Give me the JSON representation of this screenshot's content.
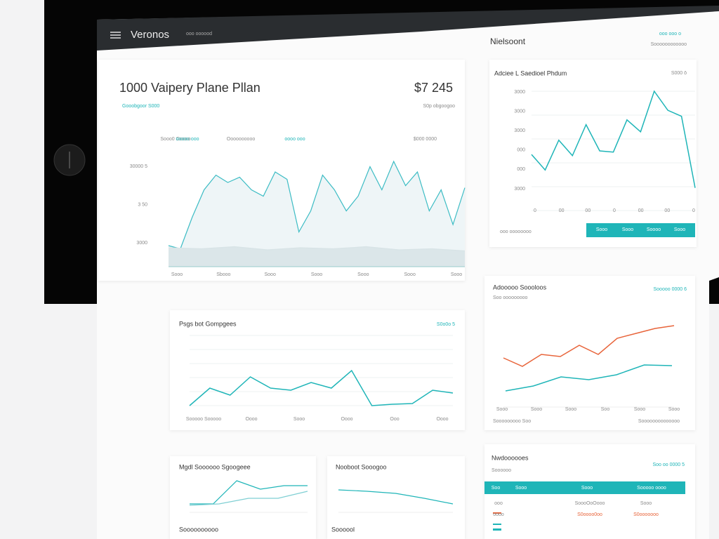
{
  "header": {
    "brand": "Veronos",
    "tagline": "ooo oooood",
    "section": "Nielsoont",
    "link": "ooo ooo o",
    "sublink": "Soooooooooooo"
  },
  "main": {
    "title": "1000 Vaipery Plane Pllan",
    "subtitle": "Gooobgoor S000",
    "price": "$7 245",
    "price_note": "S0p obgoogoo",
    "legend": [
      "Sooo0 Goooo",
      "ooooo ooo",
      "Oooooooooo",
      "oooo ooo",
      "$000 0000"
    ],
    "ylabels": [
      "30000 5",
      "3 50",
      "3000"
    ],
    "xlabels": [
      "Sooo",
      "Sbooo",
      "Sooo",
      "Sooo",
      "Sooo",
      "Sooo",
      "Sooo"
    ],
    "ylim": [
      0,
      100
    ],
    "series": [
      {
        "color": "#3cbcc4",
        "values": [
          20,
          17,
          47,
          73,
          87,
          80,
          85,
          73,
          67,
          90,
          83,
          33,
          53,
          87,
          73,
          53,
          67,
          95,
          73,
          100,
          77,
          90,
          53,
          73,
          40,
          75
        ]
      },
      {
        "color": "#d7e3e6",
        "values": [
          18,
          17,
          19,
          16,
          18,
          17,
          19,
          16,
          17,
          15
        ]
      }
    ]
  },
  "side": {
    "title": "Adciee L Saedioel Phdum",
    "badge": "S000 ō",
    "ylabels": [
      "3000",
      "3000",
      "3000",
      "000",
      "000",
      "3000"
    ],
    "xlabels": [
      "0",
      "00",
      "00",
      "0",
      "00",
      "00",
      "0"
    ],
    "footer": "ooo oooooooo",
    "tabs": [
      "Sooo",
      "Sooo",
      "Soooo",
      "Sooo"
    ],
    "ylim": [
      0,
      100
    ],
    "series": [
      {
        "color": "#1fb5b8",
        "values": [
          47,
          34,
          59,
          46,
          72,
          50,
          49,
          76,
          66,
          100,
          84,
          79,
          19
        ]
      }
    ]
  },
  "mid": {
    "title": "Psgs bot Gompgees",
    "badge": "S0o0o 5",
    "xlabels": [
      "Sooooo Sooooo",
      "Oooo",
      "Sooo",
      "Oooo",
      "Ooo",
      "Oooo"
    ],
    "ylim": [
      0,
      100
    ],
    "series": [
      {
        "color": "#1fb5b8",
        "values": [
          0,
          25,
          15,
          41,
          25,
          22,
          33,
          25,
          50,
          0,
          2,
          3,
          22,
          18
        ]
      }
    ]
  },
  "trend": {
    "title": "Adooooo Soooloos",
    "subtitle": "Soo ooooooooo",
    "badge": "Sooooo 0000 6",
    "xlabels": [
      "Sooo",
      "Sooo",
      "Sooo",
      "Soo",
      "Sooo",
      "Sooo"
    ],
    "footer_left": "Sooooooooo Soo",
    "footer_right": "Soooooooooooooo",
    "ylim": [
      0,
      130
    ],
    "series": [
      {
        "color": "#e8643a",
        "values": [
          70,
          58,
          75,
          72,
          88,
          75,
          98,
          105,
          112,
          116
        ]
      },
      {
        "color": "#1fb5b8",
        "values": [
          23,
          30,
          43,
          39,
          46,
          60,
          59
        ]
      }
    ]
  },
  "small1": {
    "title": "Mgdl Soooooo Sgoogeee",
    "footer": "Soooooooooo",
    "ylim": [
      0,
      60
    ],
    "series": [
      {
        "color": "#1fb5b8",
        "values": [
          12,
          12,
          45,
          33,
          38,
          38
        ]
      },
      {
        "color": "#7fcfd3",
        "values": [
          10,
          12,
          20,
          20,
          30
        ]
      }
    ]
  },
  "small2": {
    "title": "Nooboot Sooogoo",
    "footer": "Soooool",
    "ylim": [
      0,
      60
    ],
    "series": [
      {
        "color": "#1fb5b8",
        "values": [
          32,
          30,
          27,
          20,
          12
        ]
      }
    ]
  },
  "table": {
    "title": "Nwdoooooes",
    "subtitle": "Soooooo",
    "badge": "Soo oo 0000 5",
    "columns": [
      "Soo",
      "Sooo",
      "Sooo",
      "Sooooo oooo"
    ],
    "rows": [
      [
        "ooo",
        "SoooOoOooo",
        "Sooo"
      ],
      [
        "oooo",
        "S0oooo0oo",
        "S0ooooooo"
      ]
    ]
  }
}
